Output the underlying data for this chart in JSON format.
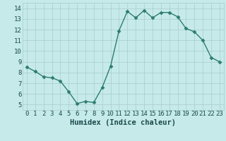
{
  "xlabel": "Humidex (Indice chaleur)",
  "x": [
    0,
    1,
    2,
    3,
    4,
    5,
    6,
    7,
    8,
    9,
    10,
    11,
    12,
    13,
    14,
    15,
    16,
    17,
    18,
    19,
    20,
    21,
    22,
    23
  ],
  "y": [
    8.5,
    8.1,
    7.6,
    7.5,
    7.2,
    6.2,
    5.1,
    5.3,
    5.2,
    6.6,
    8.6,
    11.9,
    13.7,
    13.1,
    13.8,
    13.1,
    13.6,
    13.6,
    13.2,
    12.1,
    11.8,
    11.0,
    9.4,
    9.0
  ],
  "line_color": "#2e7d6e",
  "marker": "D",
  "marker_size": 2.5,
  "background_color": "#c6eaea",
  "grid_color": "#a8cccc",
  "xlim": [
    -0.5,
    23.5
  ],
  "ylim": [
    4.5,
    14.5
  ],
  "yticks": [
    5,
    6,
    7,
    8,
    9,
    10,
    11,
    12,
    13,
    14
  ],
  "xticks": [
    0,
    1,
    2,
    3,
    4,
    5,
    6,
    7,
    8,
    9,
    10,
    11,
    12,
    13,
    14,
    15,
    16,
    17,
    18,
    19,
    20,
    21,
    22,
    23
  ],
  "tick_label_fontsize": 6.5,
  "xlabel_fontsize": 7.5,
  "tick_color": "#1a4a4a",
  "label_color": "#1a4a4a",
  "linewidth": 1.0
}
